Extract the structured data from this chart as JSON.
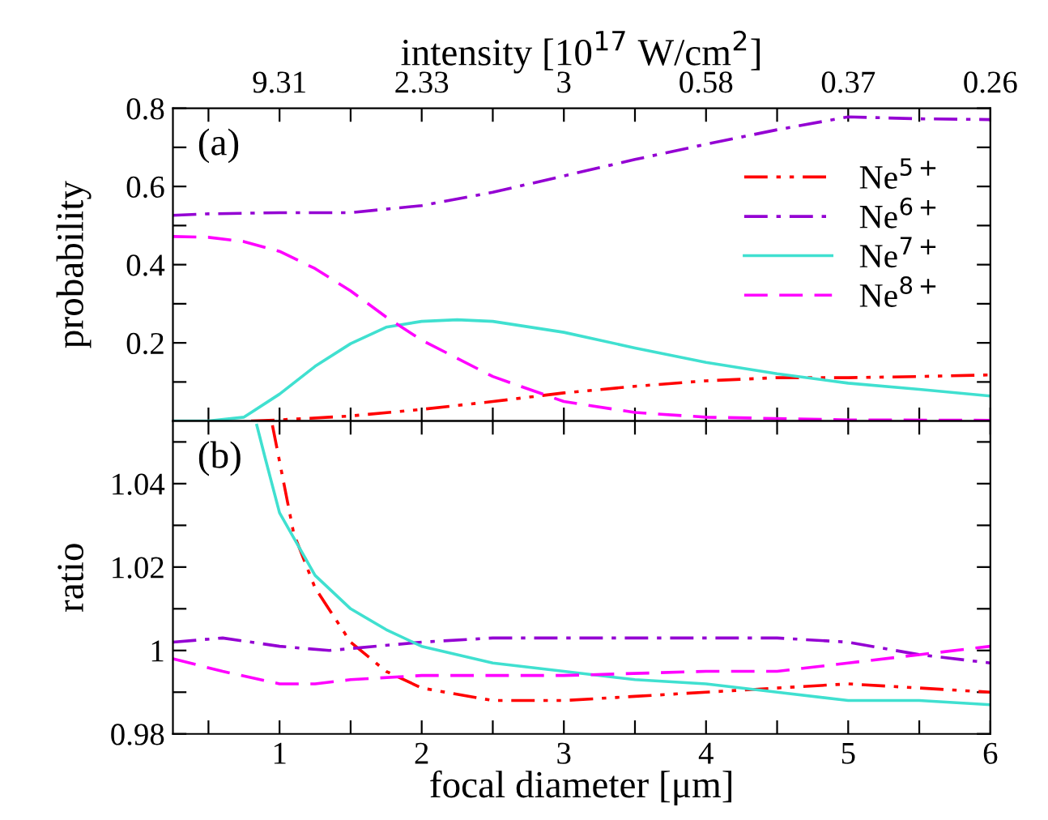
{
  "chart_data": [
    {
      "type": "line",
      "ylabel": "probability",
      "x2label": "intensity [10$^{17}$ W/cm$^{2}$]",
      "annotations": [
        "(a)",
        {
          "text": "9.31",
          "x": 1
        },
        {
          "text": "2.33",
          "x": 2
        },
        {
          "text": "3",
          "x": 3
        },
        {
          "text": "0.58",
          "x": 4
        },
        {
          "text": "0.37",
          "x": 5
        },
        {
          "text": "0.26",
          "x": 6
        }
      ],
      "xlim": [
        0.25,
        6
      ],
      "ylim": [
        0,
        0.8
      ],
      "xticks": [
        {
          "value": 0.5,
          "label": null
        },
        {
          "value": 1,
          "label": null
        },
        {
          "value": 1.5,
          "label": null
        },
        {
          "value": 2,
          "label": null
        },
        {
          "value": 2.5,
          "label": null
        },
        {
          "value": 3,
          "label": null
        },
        {
          "value": 3.5,
          "label": null
        },
        {
          "value": 4,
          "label": null
        },
        {
          "value": 4.5,
          "label": null
        },
        {
          "value": 5,
          "label": null
        },
        {
          "value": 5.5,
          "label": null
        },
        {
          "value": 6,
          "label": null
        }
      ],
      "yticks": [
        {
          "value": 0.1,
          "label": null
        },
        0.2,
        {
          "value": 0.3,
          "label": null
        },
        0.4,
        {
          "value": 0.5,
          "label": null
        },
        0.6,
        {
          "value": 0.7,
          "label": null
        },
        0.8
      ],
      "tick_labels": "y",
      "legend": "right",
      "grid": false,
      "series": [
        {
          "name": "Ne$^{5+}$",
          "color": "#ff0000",
          "line_style": "dash-dot-dot",
          "x": [
            0.8,
            1,
            1.5,
            2,
            2.5,
            3,
            3.5,
            4,
            4.5,
            5,
            5.5,
            6
          ],
          "values": [
            0.0,
            0.003,
            0.013,
            0.03,
            0.05,
            0.072,
            0.089,
            0.103,
            0.111,
            0.111,
            0.114,
            0.118
          ]
        },
        {
          "name": "Ne$^{6+}$",
          "color": "#9400d3",
          "line_style": "dash-dot",
          "x": [
            0.25,
            0.5,
            1,
            1.5,
            2,
            2.5,
            3,
            3.5,
            4,
            4.5,
            5,
            5.5,
            6
          ],
          "values": [
            0.526,
            0.53,
            0.533,
            0.533,
            0.551,
            0.585,
            0.627,
            0.669,
            0.708,
            0.745,
            0.778,
            0.773,
            0.771
          ]
        },
        {
          "name": "Ne$^{7+}$",
          "color": "#40e0d0",
          "line_style": "solid",
          "x": [
            0.25,
            0.5,
            0.75,
            1,
            1.25,
            1.5,
            1.75,
            2,
            2.25,
            2.5,
            3,
            3.5,
            4,
            4.5,
            5,
            5.5,
            6
          ],
          "values": [
            0.0,
            0.0,
            0.01,
            0.069,
            0.14,
            0.198,
            0.24,
            0.255,
            0.259,
            0.255,
            0.227,
            0.187,
            0.15,
            0.121,
            0.097,
            0.081,
            0.064
          ]
        },
        {
          "name": "Ne$^{8+}$",
          "color": "#ff00ff",
          "line_style": "dashed",
          "x": [
            0.25,
            0.5,
            0.75,
            1,
            1.25,
            1.5,
            1.75,
            2,
            2.5,
            3,
            3.5,
            4,
            5,
            6
          ],
          "values": [
            0.472,
            0.47,
            0.459,
            0.434,
            0.39,
            0.333,
            0.266,
            0.207,
            0.114,
            0.05,
            0.022,
            0.01,
            0.003,
            0.002
          ]
        }
      ]
    },
    {
      "type": "line",
      "xlabel": "focal diameter [μm]",
      "ylabel": "ratio",
      "annotations": [
        "(b)"
      ],
      "xlim": [
        0.25,
        6
      ],
      "ylim": [
        0.98,
        1.055
      ],
      "xticks": [
        {
          "value": 0.5,
          "label": null
        },
        1,
        {
          "value": 1.5,
          "label": null
        },
        2,
        {
          "value": 2.5,
          "label": null
        },
        3,
        {
          "value": 3.5,
          "label": null
        },
        4,
        {
          "value": 4.5,
          "label": null
        },
        5,
        {
          "value": 5.5,
          "label": null
        },
        6
      ],
      "yticks": [
        0.98,
        {
          "value": 0.99,
          "label": null
        },
        1,
        {
          "value": 1.01,
          "label": null
        },
        1.02,
        {
          "value": 1.03,
          "label": null
        },
        1.04,
        {
          "value": 1.05,
          "label": null
        }
      ],
      "grid": false,
      "series": [
        {
          "color": "#ff0000",
          "line_style": "dash-dot-dot",
          "x": [
            0.95,
            1.1,
            1.25,
            1.5,
            1.75,
            2,
            2.5,
            3,
            3.5,
            4,
            4.5,
            5,
            5.5,
            6
          ],
          "values": [
            1.054,
            1.028,
            1.015,
            1.002,
            0.995,
            0.991,
            0.988,
            0.988,
            0.989,
            0.99,
            0.991,
            0.992,
            0.991,
            0.99
          ]
        },
        {
          "color": "#9400d3",
          "line_style": "dash-dot",
          "x": [
            0.25,
            0.6,
            1,
            1.35,
            2,
            2.5,
            3,
            3.5,
            4,
            4.5,
            5,
            5.5,
            6
          ],
          "values": [
            1.002,
            1.003,
            1.001,
            1.0,
            1.002,
            1.003,
            1.003,
            1.003,
            1.003,
            1.003,
            1.002,
            0.999,
            0.997
          ]
        },
        {
          "color": "#40e0d0",
          "line_style": "solid",
          "x": [
            0.84,
            0.9,
            1,
            1.25,
            1.5,
            1.75,
            2,
            2.5,
            3,
            3.5,
            4,
            4.5,
            5,
            5.5,
            6
          ],
          "values": [
            1.054,
            1.046,
            1.033,
            1.018,
            1.01,
            1.005,
            1.001,
            0.997,
            0.995,
            0.993,
            0.992,
            0.99,
            0.988,
            0.988,
            0.987
          ]
        },
        {
          "color": "#ff00ff",
          "line_style": "dashed",
          "x": [
            0.25,
            0.6,
            1,
            1.25,
            1.5,
            2,
            3,
            4,
            4.5,
            5,
            5.5,
            6
          ],
          "values": [
            0.998,
            0.995,
            0.992,
            0.992,
            0.993,
            0.994,
            0.994,
            0.995,
            0.995,
            0.997,
            0.999,
            1.001
          ]
        }
      ]
    }
  ]
}
